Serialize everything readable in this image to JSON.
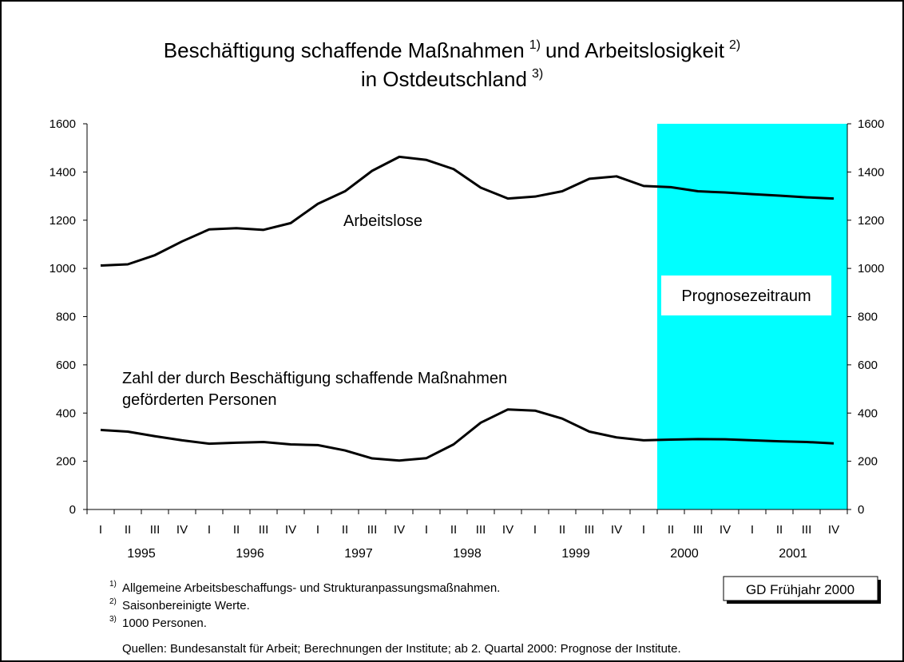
{
  "chart_data": {
    "type": "line",
    "title": [
      [
        "Beschäftigung schaffende Maßnahmen",
        "1)",
        "und Arbeitslosigkeit",
        "2)"
      ],
      [
        "in Ostdeutschland",
        "3)"
      ]
    ],
    "categories": [
      "I",
      "II",
      "III",
      "IV",
      "I",
      "II",
      "III",
      "IV",
      "I",
      "II",
      "III",
      "IV",
      "I",
      "II",
      "III",
      "IV",
      "I",
      "II",
      "III",
      "IV",
      "I",
      "II",
      "III",
      "IV",
      "I",
      "II",
      "III",
      "IV"
    ],
    "years": [
      "1995",
      "1996",
      "1997",
      "1998",
      "1999",
      "2000",
      "2001"
    ],
    "series": [
      {
        "label": [
          "Arbeitslose"
        ],
        "color": "#000000",
        "values": [
          1012,
          1017,
          1055,
          1112,
          1162,
          1167,
          1160,
          1188,
          1268,
          1320,
          1405,
          1463,
          1450,
          1412,
          1335,
          1290,
          1298,
          1320,
          1372,
          1382,
          1342,
          1337,
          1320,
          1315,
          1308,
          1302,
          1295,
          1290
        ]
      },
      {
        "label": [
          "Zahl der durch Beschäftigung schaffende Maßnahmen",
          "geförderten Personen"
        ],
        "color": "#000000",
        "values": [
          330,
          323,
          304,
          287,
          273,
          277,
          280,
          270,
          267,
          245,
          212,
          203,
          213,
          270,
          360,
          415,
          410,
          377,
          323,
          299,
          287,
          290,
          292,
          291,
          287,
          283,
          280,
          274
        ]
      }
    ],
    "ylim": [
      0,
      1600
    ],
    "yticks": [
      0,
      200,
      400,
      600,
      800,
      1000,
      1200,
      1400,
      1600
    ],
    "y2lim": [
      0,
      1600
    ],
    "y2ticks": [
      0,
      200,
      400,
      600,
      800,
      1000,
      1200,
      1400,
      1600
    ],
    "forecast": {
      "label": "Prognosezeitraum",
      "start_index": 21,
      "color": "#00ffff"
    },
    "footnotes": [
      {
        "mark": "1)",
        "text": "Allgemeine Arbeitsbeschaffungs- und Strukturanpassungsmaßnahmen."
      },
      {
        "mark": "2)",
        "text": "Saisonbereinigte Werte."
      },
      {
        "mark": "3)",
        "text": "1000 Personen."
      }
    ],
    "source": "Quellen: Bundesanstalt für Arbeit; Berechnungen der Institute; ab 2. Quartal 2000: Prognose der Institute.",
    "badge": "GD Frühjahr 2000"
  }
}
